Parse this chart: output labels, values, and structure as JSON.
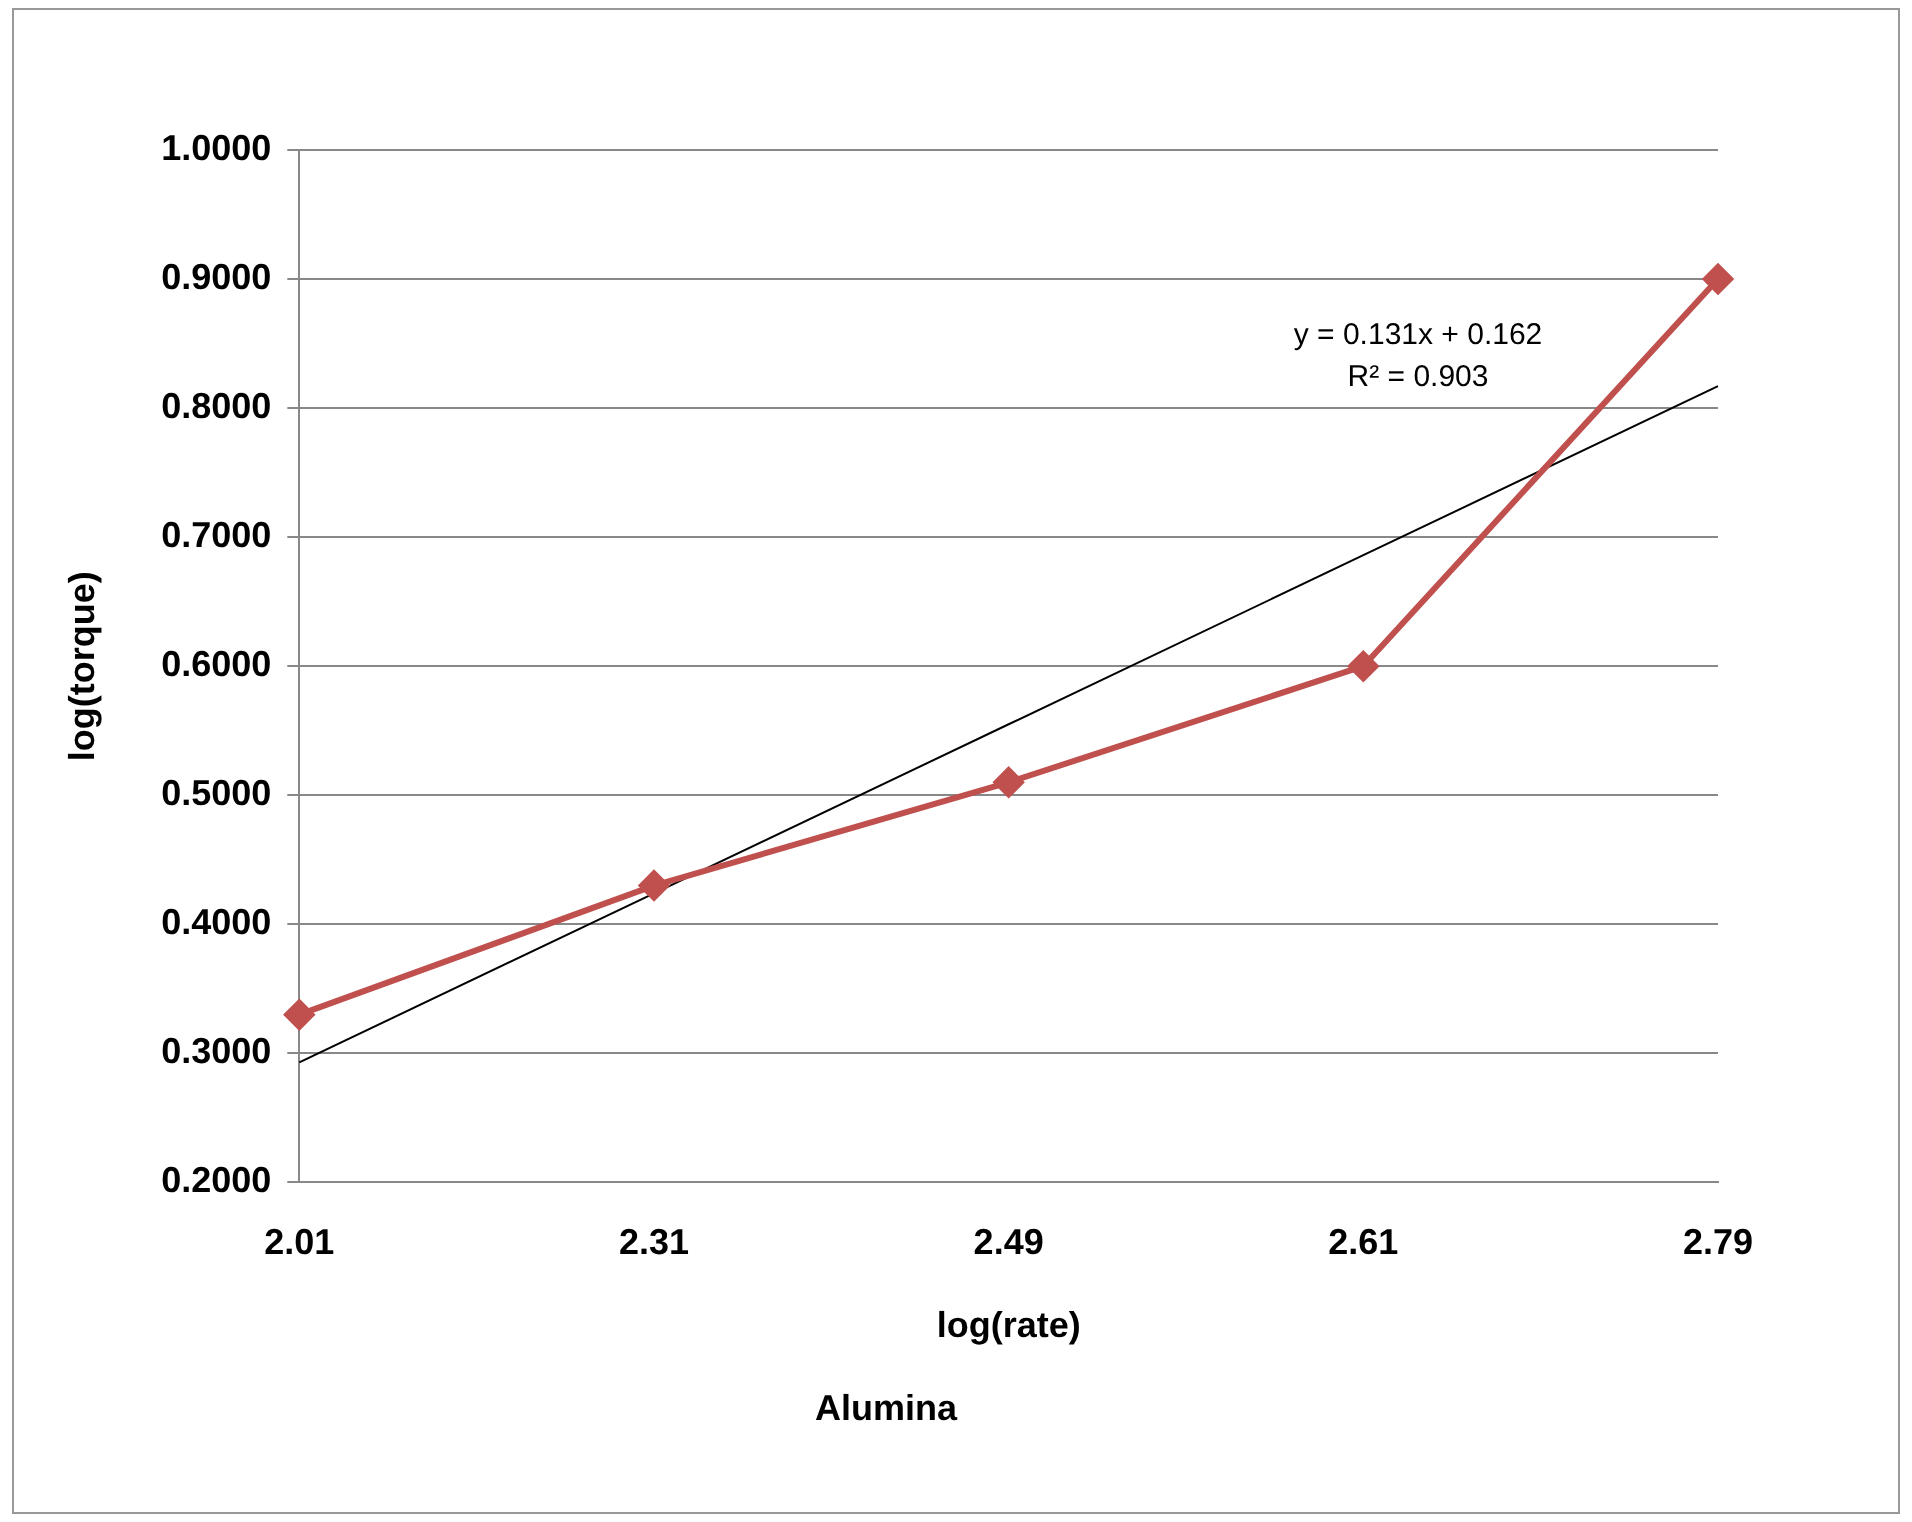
{
  "chart_data": {
    "type": "line",
    "title": "Alumina",
    "xlabel": "log(rate)",
    "ylabel": "log(torque)",
    "categories": [
      "2.01",
      "2.31",
      "2.49",
      "2.61",
      "2.79"
    ],
    "series": [
      {
        "color": "#c0504d",
        "values": [
          0.33,
          0.43,
          0.51,
          0.6,
          0.9
        ],
        "marker": "diamond"
      },
      {
        "color": "#000000",
        "values": [
          0.293,
          0.424,
          0.555,
          0.686,
          0.817
        ],
        "marker": "none"
      }
    ],
    "ylim": [
      0.2,
      1.0
    ],
    "yticks": [
      {
        "value": 0.2,
        "label": "0.2000"
      },
      {
        "value": 0.3,
        "label": "0.3000"
      },
      {
        "value": 0.4,
        "label": "0.4000"
      },
      {
        "value": 0.5,
        "label": "0.5000"
      },
      {
        "value": 0.6,
        "label": "0.6000"
      },
      {
        "value": 0.7,
        "label": "0.7000"
      },
      {
        "value": 0.8,
        "label": "0.8000"
      },
      {
        "value": 0.9,
        "label": "0.9000"
      },
      {
        "value": 1.0,
        "label": "1.0000"
      }
    ],
    "grid": "y",
    "legend": false,
    "annotations": [
      "y = 0.131x + 0.162",
      "R² = 0.903"
    ]
  }
}
